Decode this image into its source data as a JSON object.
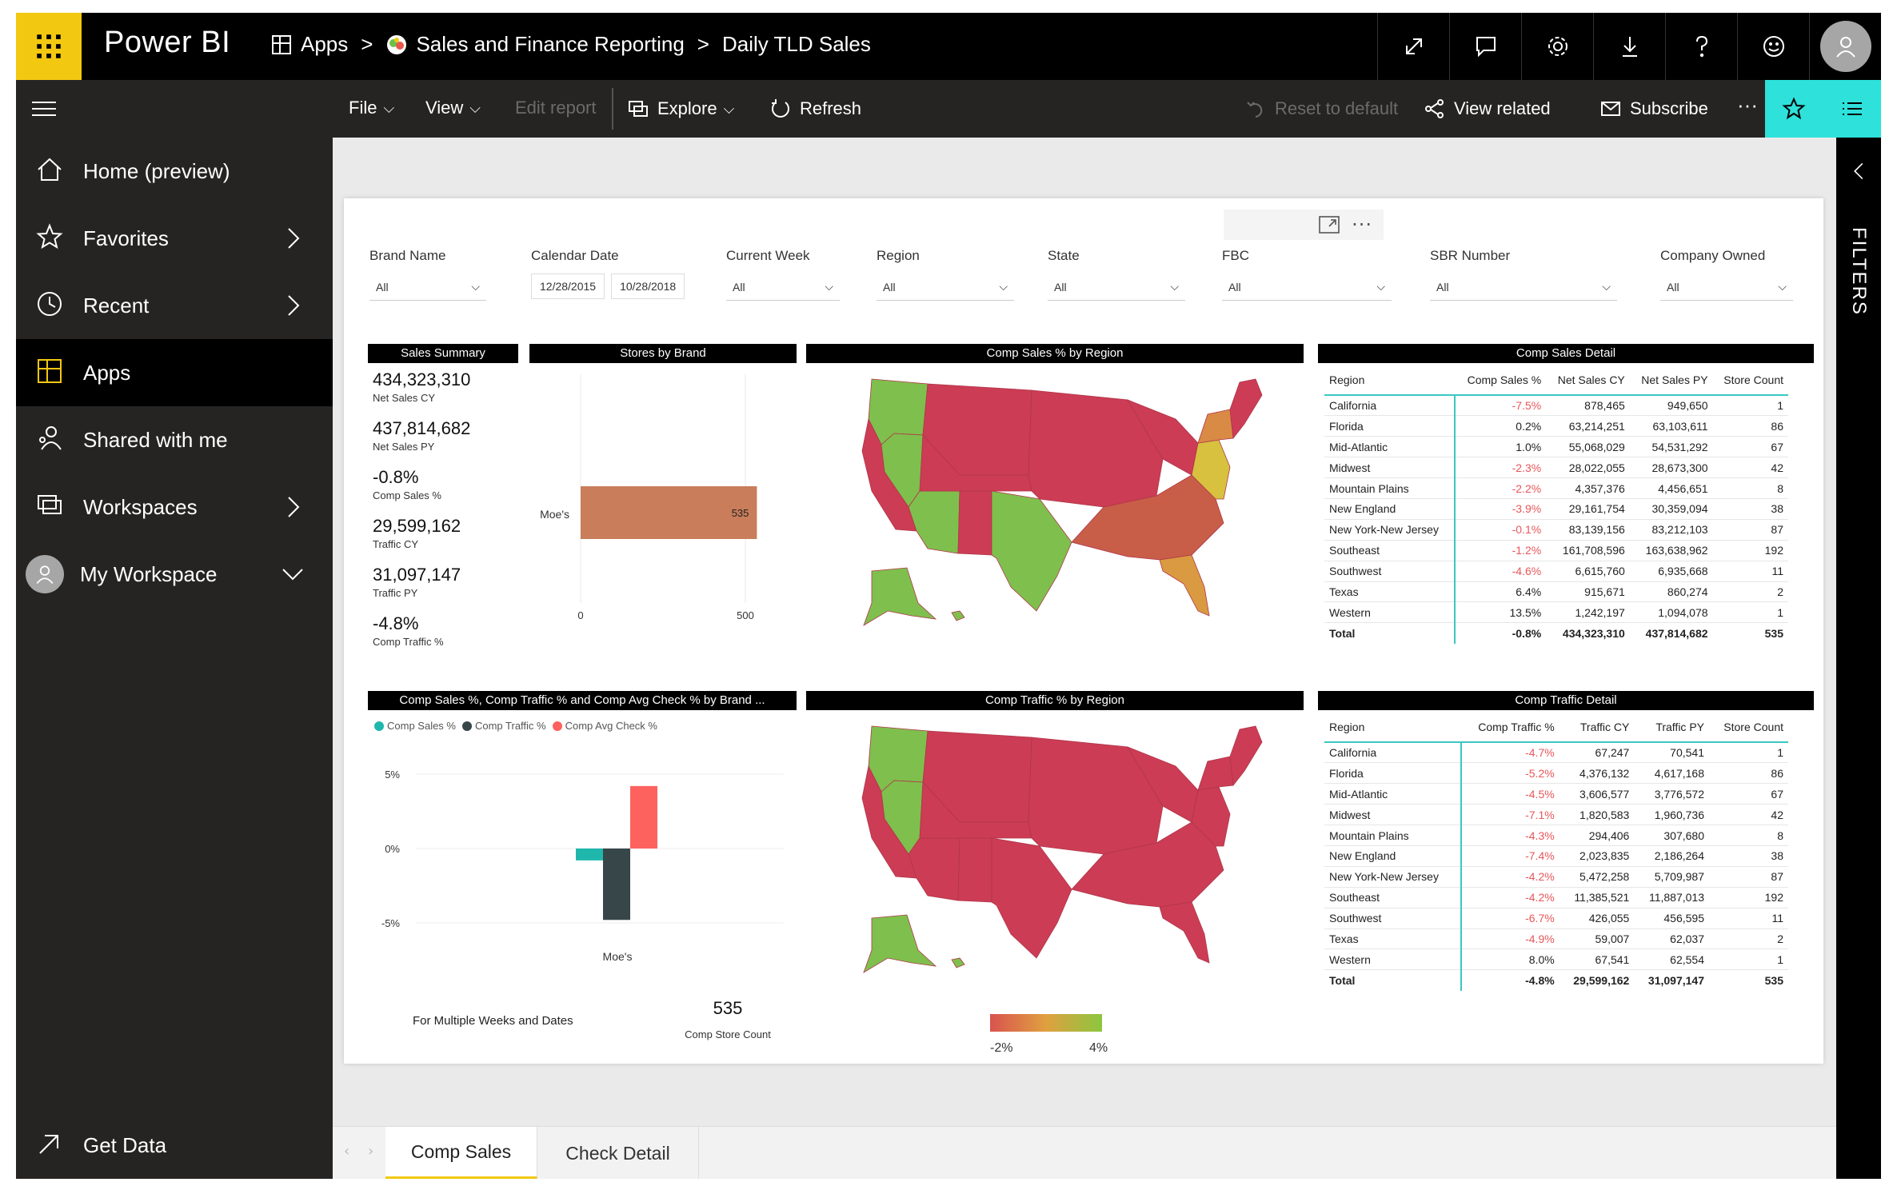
{
  "topbar": {
    "brand": "Power BI",
    "breadcrumbs": [
      "Apps",
      "Sales and Finance Reporting",
      "Daily TLD Sales"
    ],
    "icons": [
      "expand-icon",
      "comment-icon",
      "gear-icon",
      "download-icon",
      "help-icon",
      "smiley-icon",
      "user-avatar-icon"
    ]
  },
  "actionbar": {
    "file": "File",
    "view": "View",
    "edit_report": "Edit report",
    "explore": "Explore",
    "refresh": "Refresh",
    "reset": "Reset to default",
    "view_related": "View related",
    "subscribe": "Subscribe",
    "more": "···"
  },
  "nav": {
    "items": [
      {
        "label": "Home (preview)",
        "icon": "home-icon"
      },
      {
        "label": "Favorites",
        "icon": "star-icon"
      },
      {
        "label": "Recent",
        "icon": "clock-icon"
      },
      {
        "label": "Apps",
        "icon": "apps-icon"
      },
      {
        "label": "Shared with me",
        "icon": "shared-icon"
      },
      {
        "label": "Workspaces",
        "icon": "workspaces-icon"
      },
      {
        "label": "My Workspace",
        "icon": "avatar-icon"
      }
    ],
    "get_data": "Get Data"
  },
  "filters_label": "FILTERS",
  "slicers": [
    {
      "label": "Brand Name",
      "value": "All"
    },
    {
      "label": "Calendar Date",
      "from": "12/28/2015",
      "to": "10/28/2018"
    },
    {
      "label": "Current Week",
      "value": "All"
    },
    {
      "label": "Region",
      "value": "All"
    },
    {
      "label": "State",
      "value": "All"
    },
    {
      "label": "FBC",
      "value": "All"
    },
    {
      "label": "SBR Number",
      "value": "All"
    },
    {
      "label": "Company Owned",
      "value": "All"
    }
  ],
  "sales_summary": {
    "title": "Sales Summary",
    "kpis": [
      {
        "value": "434,323,310",
        "label": "Net Sales CY"
      },
      {
        "value": "437,814,682",
        "label": "Net Sales PY"
      },
      {
        "value": "-0.8%",
        "label": "Comp Sales %"
      },
      {
        "value": "29,599,162",
        "label": "Traffic CY"
      },
      {
        "value": "31,097,147",
        "label": "Traffic PY"
      },
      {
        "value": "-4.8%",
        "label": "Comp Traffic %"
      }
    ]
  },
  "stores_by_brand": {
    "title": "Stores by Brand",
    "category": "Moe's",
    "value_label": "535",
    "ticks": [
      "0",
      "500"
    ]
  },
  "comp_sales_map": {
    "title": "Comp Sales % by Region"
  },
  "comp_traffic_map": {
    "title": "Comp Traffic % by Region",
    "legend_min": "-2%",
    "legend_max": "4%",
    "colors": [
      "#d9534f",
      "#e0a040",
      "#8cc63f"
    ]
  },
  "comp_sales_detail": {
    "title": "Comp Sales Detail",
    "headers": [
      "Region",
      "Comp Sales %",
      "Net Sales CY",
      "Net Sales PY",
      "Store Count"
    ],
    "rows": [
      [
        "California",
        "-7.5%",
        "878,465",
        "949,650",
        "1"
      ],
      [
        "Florida",
        "0.2%",
        "63,214,251",
        "63,103,611",
        "86"
      ],
      [
        "Mid-Atlantic",
        "1.0%",
        "55,068,029",
        "54,531,292",
        "67"
      ],
      [
        "Midwest",
        "-2.3%",
        "28,022,055",
        "28,673,300",
        "42"
      ],
      [
        "Mountain Plains",
        "-2.2%",
        "4,357,376",
        "4,456,651",
        "8"
      ],
      [
        "New England",
        "-3.9%",
        "29,161,754",
        "30,359,094",
        "38"
      ],
      [
        "New York-New Jersey",
        "-0.1%",
        "83,139,156",
        "83,212,103",
        "87"
      ],
      [
        "Southeast",
        "-1.2%",
        "161,708,596",
        "163,638,962",
        "192"
      ],
      [
        "Southwest",
        "-4.6%",
        "6,615,760",
        "6,935,668",
        "11"
      ],
      [
        "Texas",
        "6.4%",
        "915,671",
        "860,274",
        "2"
      ],
      [
        "Western",
        "13.5%",
        "1,242,197",
        "1,094,078",
        "1"
      ]
    ],
    "total": [
      "Total",
      "-0.8%",
      "434,323,310",
      "437,814,682",
      "535"
    ]
  },
  "comp_traffic_detail": {
    "title": "Comp Traffic Detail",
    "headers": [
      "Region",
      "Comp Traffic %",
      "Traffic CY",
      "Traffic PY",
      "Store Count"
    ],
    "rows": [
      [
        "California",
        "-4.7%",
        "67,247",
        "70,541",
        "1"
      ],
      [
        "Florida",
        "-5.2%",
        "4,376,132",
        "4,617,168",
        "86"
      ],
      [
        "Mid-Atlantic",
        "-4.5%",
        "3,606,577",
        "3,776,572",
        "67"
      ],
      [
        "Midwest",
        "-7.1%",
        "1,820,583",
        "1,960,736",
        "42"
      ],
      [
        "Mountain Plains",
        "-4.3%",
        "294,406",
        "307,680",
        "8"
      ],
      [
        "New England",
        "-7.4%",
        "2,023,835",
        "2,186,264",
        "38"
      ],
      [
        "New York-New Jersey",
        "-4.2%",
        "5,472,258",
        "5,709,987",
        "87"
      ],
      [
        "Southeast",
        "-4.2%",
        "11,385,521",
        "11,887,013",
        "192"
      ],
      [
        "Southwest",
        "-6.7%",
        "426,055",
        "456,595",
        "11"
      ],
      [
        "Texas",
        "-4.9%",
        "59,007",
        "62,037",
        "2"
      ],
      [
        "Western",
        "8.0%",
        "67,541",
        "62,554",
        "1"
      ]
    ],
    "total": [
      "Total",
      "-4.8%",
      "29,599,162",
      "31,097,147",
      "535"
    ]
  },
  "brand_chart": {
    "title": "Comp Sales %, Comp Traffic % and Comp Avg Check % by Brand ...",
    "legend": [
      {
        "name": "Comp Sales %",
        "color": "#1fb7ac"
      },
      {
        "name": "Comp Traffic %",
        "color": "#374649"
      },
      {
        "name": "Comp Avg Check %",
        "color": "#fd625e"
      }
    ],
    "yticks": [
      "5%",
      "0%",
      "-5%"
    ],
    "category": "Moe's",
    "footnote": "For Multiple Weeks and Dates",
    "store_count_value": "535",
    "store_count_label": "Comp Store Count"
  },
  "chart_data": [
    {
      "type": "bar",
      "title": "Stores by Brand",
      "categories": [
        "Moe's"
      ],
      "values": [
        535
      ],
      "xlim": [
        0,
        600
      ]
    },
    {
      "type": "bar",
      "title": "Comp Sales %, Comp Traffic % and Comp Avg Check % by Brand ...",
      "categories": [
        "Moe's"
      ],
      "series": [
        {
          "name": "Comp Sales %",
          "values": [
            -0.8
          ]
        },
        {
          "name": "Comp Traffic %",
          "values": [
            -4.8
          ]
        },
        {
          "name": "Comp Avg Check %",
          "values": [
            4.2
          ]
        }
      ],
      "ylim": [
        -6,
        6
      ]
    }
  ],
  "pages": {
    "tabs": [
      "Comp Sales",
      "Check Detail"
    ]
  }
}
